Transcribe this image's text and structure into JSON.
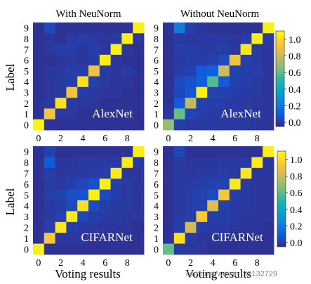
{
  "chart_data": [
    {
      "type": "heatmap",
      "column_title": "With NeuNorm",
      "model_label": "AlexNet",
      "ylabel": "Label",
      "xlabel": "",
      "x_ticks": [
        "0",
        "2",
        "4",
        "6",
        "8"
      ],
      "y_ticks": [
        "0",
        "1",
        "2",
        "3",
        "4",
        "5",
        "6",
        "7",
        "8",
        "9"
      ],
      "rows": [
        "9",
        "8",
        "7",
        "6",
        "5",
        "4",
        "3",
        "2",
        "1",
        "0"
      ],
      "values": [
        [
          0.02,
          0.08,
          0.02,
          0.02,
          0.02,
          0.02,
          0.02,
          0.02,
          0.02,
          0.97
        ],
        [
          0.02,
          0.03,
          0.02,
          0.04,
          0.05,
          0.04,
          0.03,
          0.04,
          0.97,
          0.03
        ],
        [
          0.02,
          0.03,
          0.05,
          0.05,
          0.03,
          0.05,
          0.03,
          0.97,
          0.03,
          0.02
        ],
        [
          0.02,
          0.02,
          0.03,
          0.04,
          0.03,
          0.04,
          0.96,
          0.03,
          0.02,
          0.02
        ],
        [
          0.02,
          0.03,
          0.04,
          0.05,
          0.05,
          0.83,
          0.04,
          0.03,
          0.04,
          0.02
        ],
        [
          0.02,
          0.03,
          0.04,
          0.05,
          0.93,
          0.05,
          0.04,
          0.03,
          0.03,
          0.02
        ],
        [
          0.02,
          0.03,
          0.04,
          0.84,
          0.05,
          0.04,
          0.03,
          0.03,
          0.02,
          0.02
        ],
        [
          0.02,
          0.04,
          0.93,
          0.04,
          0.03,
          0.03,
          0.02,
          0.02,
          0.02,
          0.02
        ],
        [
          0.02,
          0.85,
          0.04,
          0.03,
          0.02,
          0.02,
          0.02,
          0.02,
          0.02,
          0.02
        ],
        [
          0.98,
          0.02,
          0.02,
          0.02,
          0.02,
          0.02,
          0.02,
          0.02,
          0.02,
          0.02
        ]
      ]
    },
    {
      "type": "heatmap",
      "column_title": "Without NeuNorm",
      "model_label": "AlexNet",
      "ylabel": "",
      "xlabel": "",
      "x_ticks": [
        "0",
        "2",
        "4",
        "6",
        "8"
      ],
      "y_ticks": [
        "0",
        "1",
        "2",
        "3",
        "4",
        "5",
        "6",
        "7",
        "8",
        "9"
      ],
      "rows": [
        "9",
        "8",
        "7",
        "6",
        "5",
        "4",
        "3",
        "2",
        "1",
        "0"
      ],
      "values": [
        [
          0.02,
          0.22,
          0.05,
          0.03,
          0.02,
          0.02,
          0.02,
          0.02,
          0.02,
          0.97
        ],
        [
          0.02,
          0.04,
          0.03,
          0.04,
          0.04,
          0.04,
          0.03,
          0.05,
          0.97,
          0.04
        ],
        [
          0.02,
          0.05,
          0.05,
          0.04,
          0.04,
          0.05,
          0.03,
          0.95,
          0.04,
          0.03
        ],
        [
          0.02,
          0.04,
          0.05,
          0.05,
          0.06,
          0.08,
          0.83,
          0.05,
          0.04,
          0.03
        ],
        [
          0.02,
          0.05,
          0.06,
          0.12,
          0.14,
          0.75,
          0.06,
          0.05,
          0.05,
          0.03
        ],
        [
          0.02,
          0.08,
          0.1,
          0.14,
          0.55,
          0.12,
          0.06,
          0.05,
          0.04,
          0.03
        ],
        [
          0.02,
          0.07,
          0.11,
          0.97,
          0.06,
          0.06,
          0.05,
          0.04,
          0.04,
          0.03
        ],
        [
          0.02,
          0.12,
          0.72,
          0.06,
          0.05,
          0.05,
          0.04,
          0.04,
          0.03,
          0.03
        ],
        [
          0.03,
          0.58,
          0.07,
          0.05,
          0.04,
          0.04,
          0.04,
          0.04,
          0.03,
          0.03
        ],
        [
          0.65,
          0.05,
          0.04,
          0.04,
          0.04,
          0.04,
          0.04,
          0.04,
          0.03,
          0.03
        ]
      ]
    },
    {
      "type": "heatmap",
      "column_title": "",
      "model_label": "CIFARNet",
      "ylabel": "Label",
      "xlabel": "Voting results",
      "x_ticks": [
        "0",
        "2",
        "4",
        "6",
        "8"
      ],
      "y_ticks": [
        "0",
        "1",
        "2",
        "3",
        "4",
        "5",
        "6",
        "7",
        "8",
        "9"
      ],
      "rows": [
        "9",
        "8",
        "7",
        "6",
        "5",
        "4",
        "3",
        "2",
        "1",
        "0"
      ],
      "values": [
        [
          0.02,
          0.06,
          0.02,
          0.02,
          0.02,
          0.02,
          0.02,
          0.02,
          0.02,
          0.97
        ],
        [
          0.02,
          0.12,
          0.03,
          0.03,
          0.04,
          0.04,
          0.04,
          0.04,
          0.96,
          0.04
        ],
        [
          0.02,
          0.05,
          0.03,
          0.04,
          0.04,
          0.05,
          0.05,
          0.96,
          0.03,
          0.03
        ],
        [
          0.02,
          0.04,
          0.04,
          0.05,
          0.07,
          0.1,
          0.97,
          0.05,
          0.04,
          0.03
        ],
        [
          0.02,
          0.05,
          0.06,
          0.09,
          0.1,
          0.97,
          0.08,
          0.05,
          0.04,
          0.03
        ],
        [
          0.02,
          0.04,
          0.05,
          0.08,
          0.93,
          0.08,
          0.05,
          0.04,
          0.04,
          0.03
        ],
        [
          0.02,
          0.04,
          0.06,
          0.96,
          0.07,
          0.05,
          0.04,
          0.04,
          0.03,
          0.03
        ],
        [
          0.02,
          0.05,
          0.95,
          0.05,
          0.04,
          0.04,
          0.03,
          0.03,
          0.03,
          0.02
        ],
        [
          0.02,
          0.87,
          0.03,
          0.03,
          0.03,
          0.02,
          0.02,
          0.02,
          0.02,
          0.02
        ],
        [
          0.97,
          0.02,
          0.02,
          0.02,
          0.02,
          0.02,
          0.02,
          0.02,
          0.02,
          0.02
        ]
      ]
    },
    {
      "type": "heatmap",
      "column_title": "",
      "model_label": "CIFARNet",
      "ylabel": "",
      "xlabel": "Voting results",
      "x_ticks": [
        "0",
        "2",
        "4",
        "6",
        "8"
      ],
      "y_ticks": [
        "0",
        "1",
        "2",
        "3",
        "4",
        "5",
        "6",
        "7",
        "8",
        "9"
      ],
      "rows": [
        "9",
        "8",
        "7",
        "6",
        "5",
        "4",
        "3",
        "2",
        "1",
        "0"
      ],
      "values": [
        [
          0.02,
          0.07,
          0.02,
          0.02,
          0.02,
          0.02,
          0.02,
          0.02,
          0.02,
          0.97
        ],
        [
          0.02,
          0.04,
          0.03,
          0.03,
          0.03,
          0.04,
          0.04,
          0.04,
          0.96,
          0.03
        ],
        [
          0.02,
          0.04,
          0.03,
          0.04,
          0.04,
          0.05,
          0.04,
          0.95,
          0.03,
          0.03
        ],
        [
          0.02,
          0.04,
          0.04,
          0.05,
          0.06,
          0.06,
          0.95,
          0.04,
          0.03,
          0.03
        ],
        [
          0.02,
          0.04,
          0.05,
          0.06,
          0.08,
          0.85,
          0.05,
          0.04,
          0.03,
          0.03
        ],
        [
          0.02,
          0.04,
          0.05,
          0.06,
          0.78,
          0.06,
          0.04,
          0.04,
          0.03,
          0.03
        ],
        [
          0.02,
          0.04,
          0.05,
          0.88,
          0.05,
          0.05,
          0.04,
          0.03,
          0.03,
          0.03
        ],
        [
          0.02,
          0.05,
          0.75,
          0.05,
          0.04,
          0.04,
          0.03,
          0.03,
          0.03,
          0.02
        ],
        [
          0.02,
          0.93,
          0.04,
          0.03,
          0.03,
          0.03,
          0.02,
          0.02,
          0.02,
          0.02
        ],
        [
          0.58,
          0.04,
          0.03,
          0.03,
          0.02,
          0.02,
          0.02,
          0.02,
          0.02,
          0.02
        ]
      ]
    }
  ],
  "colorbar": {
    "ticks": [
      "1.0",
      "0.8",
      "0.6",
      "0.4",
      "0.2",
      "0.0"
    ],
    "tick_values": [
      1.0,
      0.8,
      0.6,
      0.4,
      0.2,
      0.0
    ],
    "range": [
      -0.05,
      1.1
    ],
    "colormap": "parula",
    "colors": [
      "#352a87",
      "#0f5cdd",
      "#1481d6",
      "#06a4ca",
      "#2eb7a4",
      "#87bf77",
      "#d1bb59",
      "#fec832",
      "#f9fb0e"
    ]
  },
  "watermark": "csdn.net/weixin_38132729"
}
